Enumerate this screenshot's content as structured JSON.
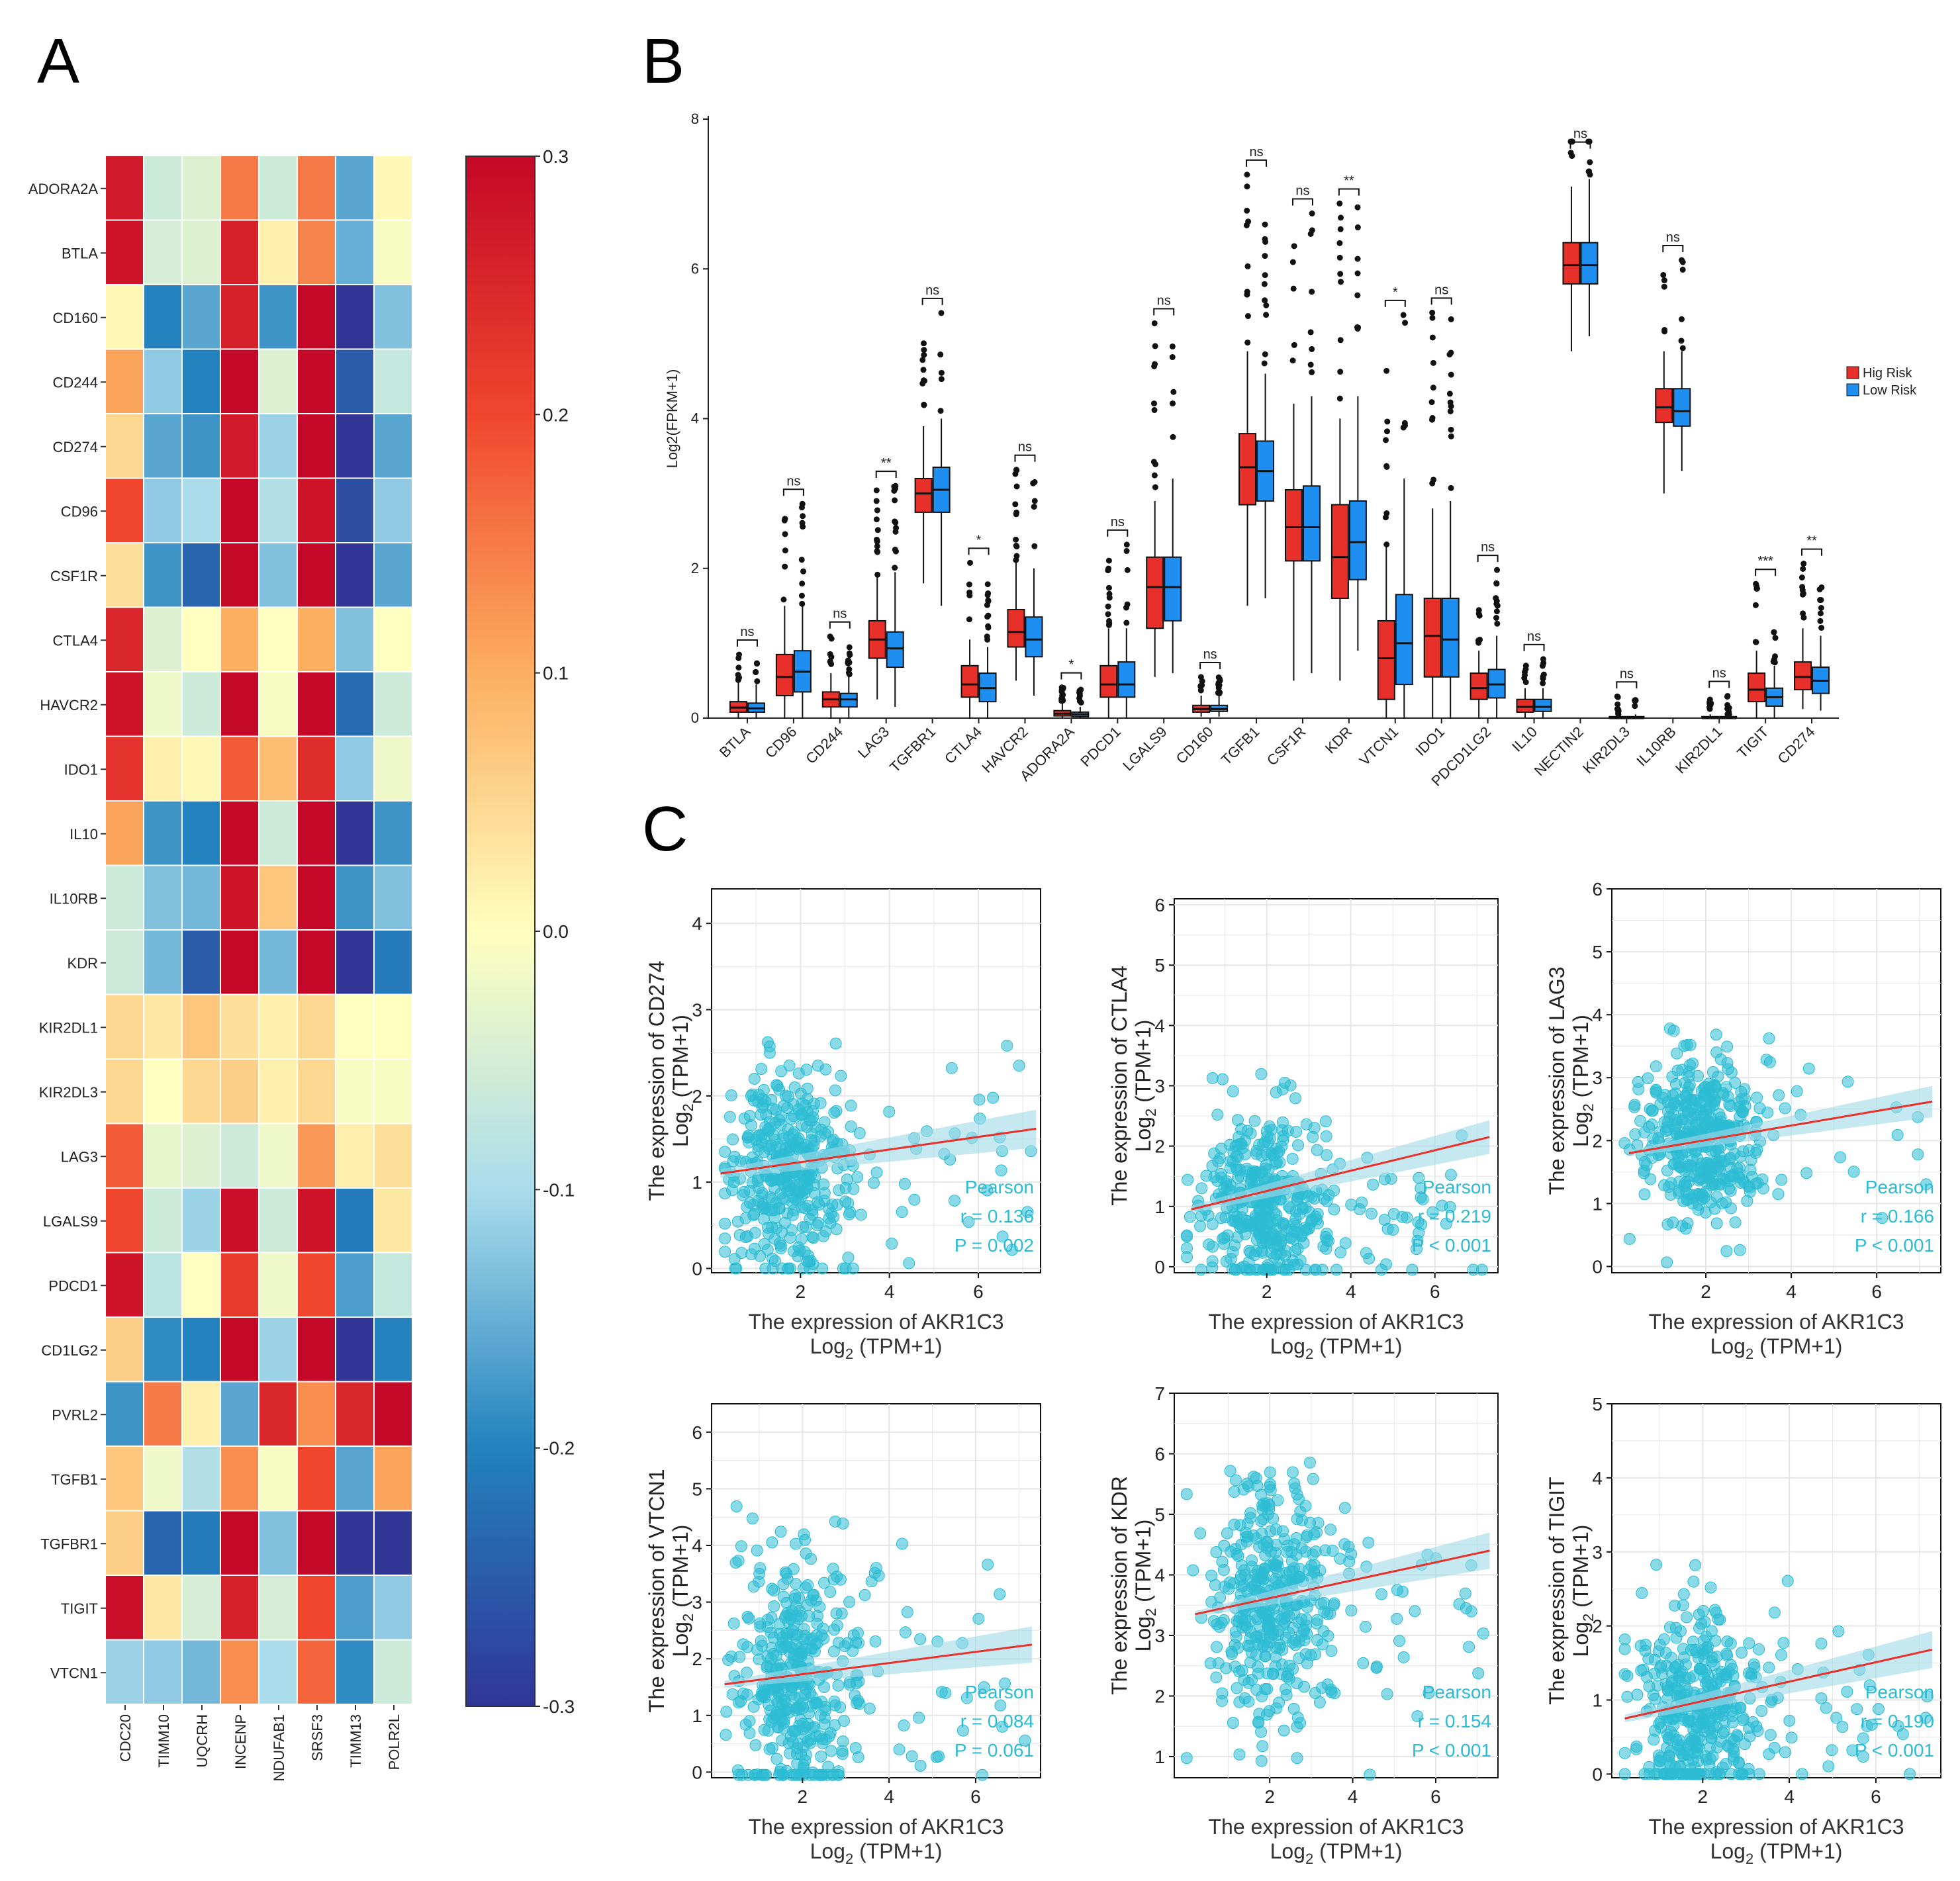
{
  "panel_labels": [
    "A",
    "B",
    "C"
  ],
  "chart_data": [
    {
      "type": "heatmap",
      "panel": "A",
      "rows": [
        "ADORA2A",
        "BTLA",
        "CD160",
        "CD244",
        "CD274",
        "CD96",
        "CSF1R",
        "CTLA4",
        "HAVCR2",
        "IDO1",
        "IL10",
        "IL10RB",
        "KDR",
        "KIR2DL1",
        "KIR2DL3",
        "LAG3",
        "LGALS9",
        "PDCD1",
        "CD1LG2",
        "PVRL2",
        "TGFB1",
        "TGFBR1",
        "TIGIT",
        "VTCN1"
      ],
      "columns": [
        "CDC20",
        "TIMM10",
        "UQCRH",
        "INCENP",
        "NDUFAB1",
        "SRSF3",
        "TIMM13",
        "POLR2L"
      ],
      "values": [
        [
          0.27,
          -0.06,
          -0.04,
          0.15,
          -0.06,
          0.15,
          -0.16,
          0.01
        ],
        [
          0.28,
          -0.05,
          -0.04,
          0.26,
          0.02,
          0.14,
          -0.15,
          -0.01
        ],
        [
          0.01,
          -0.2,
          -0.16,
          0.26,
          -0.18,
          0.3,
          -0.3,
          -0.13
        ],
        [
          0.11,
          -0.12,
          -0.2,
          0.3,
          -0.04,
          0.3,
          -0.25,
          -0.07
        ],
        [
          0.05,
          -0.16,
          -0.18,
          0.27,
          -0.11,
          0.3,
          -0.3,
          -0.16
        ],
        [
          0.2,
          -0.12,
          -0.1,
          0.3,
          -0.09,
          0.28,
          -0.27,
          -0.12
        ],
        [
          0.04,
          -0.18,
          -0.24,
          0.3,
          -0.13,
          0.3,
          -0.3,
          -0.16
        ],
        [
          0.25,
          -0.04,
          0.0,
          0.1,
          0.0,
          0.1,
          -0.13,
          0.0
        ],
        [
          0.28,
          -0.02,
          -0.06,
          0.3,
          -0.01,
          0.3,
          -0.23,
          -0.06
        ],
        [
          0.23,
          0.02,
          0.01,
          0.18,
          0.08,
          0.24,
          -0.12,
          -0.02
        ],
        [
          0.11,
          -0.18,
          -0.2,
          0.3,
          -0.06,
          0.3,
          -0.3,
          -0.18
        ],
        [
          -0.06,
          -0.13,
          -0.14,
          0.28,
          0.07,
          0.3,
          -0.18,
          -0.13
        ],
        [
          -0.06,
          -0.14,
          -0.25,
          0.3,
          -0.14,
          0.3,
          -0.3,
          -0.21
        ],
        [
          0.05,
          0.03,
          0.07,
          0.04,
          0.02,
          0.05,
          0.0,
          0.0
        ],
        [
          0.05,
          0.0,
          0.05,
          0.06,
          0.02,
          0.05,
          -0.01,
          -0.01
        ],
        [
          0.18,
          -0.03,
          -0.04,
          -0.06,
          -0.02,
          0.12,
          0.02,
          0.04
        ],
        [
          0.2,
          -0.06,
          -0.11,
          0.29,
          -0.06,
          0.28,
          -0.21,
          0.03
        ],
        [
          0.28,
          -0.08,
          0.0,
          0.22,
          -0.02,
          0.2,
          -0.17,
          -0.07
        ],
        [
          0.06,
          -0.19,
          -0.2,
          0.3,
          -0.11,
          0.3,
          -0.3,
          -0.2
        ],
        [
          -0.18,
          0.15,
          0.02,
          -0.16,
          0.25,
          0.13,
          0.25,
          0.3
        ],
        [
          0.07,
          -0.02,
          -0.09,
          0.13,
          -0.01,
          0.2,
          -0.16,
          0.11
        ],
        [
          0.06,
          -0.24,
          -0.21,
          0.3,
          -0.13,
          0.3,
          -0.3,
          -0.3
        ],
        [
          0.29,
          0.03,
          -0.05,
          0.26,
          -0.05,
          0.2,
          -0.17,
          -0.12
        ],
        [
          -0.11,
          -0.12,
          -0.14,
          0.13,
          -0.1,
          0.17,
          -0.19,
          -0.06
        ]
      ],
      "colorbar": {
        "min": -0.3,
        "max": 0.3,
        "ticks": [
          "0.3",
          "0.2",
          "0.1",
          "0.0",
          "-0.1",
          "-0.2",
          "-0.3"
        ]
      }
    },
    {
      "type": "bar",
      "subtype": "boxplot",
      "panel": "B",
      "ylabel": "Log2(FPKM+1)",
      "ylim": [
        0,
        8
      ],
      "yticks": [
        "0",
        "2",
        "4",
        "6",
        "8"
      ],
      "legend": {
        "position": "right",
        "entries": [
          "Hig Risk",
          "Low Risk"
        ]
      },
      "categories": [
        "BTLA",
        "CD96",
        "CD244",
        "LAG3",
        "TGFBR1",
        "CTLA4",
        "HAVCR2",
        "ADORA2A",
        "PDCD1",
        "LGALS9",
        "CD160",
        "TGFB1",
        "CSF1R",
        "KDR",
        "VTCN1",
        "IDO1",
        "PDCD1LG2",
        "IL10",
        "NECTIN2",
        "KIR2DL3",
        "IL10RB",
        "KIR2DL1",
        "TIGIT",
        "CD274"
      ],
      "significance": [
        "ns",
        "ns",
        "ns",
        "**",
        "ns",
        "*",
        "ns",
        "*",
        "ns",
        "ns",
        "ns",
        "ns",
        "ns",
        "**",
        "*",
        "ns",
        "ns",
        "ns",
        "ns",
        "ns",
        "ns",
        "ns",
        "***",
        "**"
      ],
      "series": [
        {
          "name": "Hig Risk",
          "q1": [
            0.08,
            0.3,
            0.15,
            0.8,
            2.75,
            0.28,
            0.95,
            0.03,
            0.28,
            1.2,
            0.08,
            2.85,
            2.1,
            1.6,
            0.25,
            0.55,
            0.25,
            0.08,
            5.8,
            0.0,
            3.95,
            0.0,
            0.22,
            0.38
          ],
          "median": [
            0.14,
            0.55,
            0.25,
            1.05,
            3.0,
            0.45,
            1.15,
            0.06,
            0.45,
            1.75,
            0.12,
            3.35,
            2.55,
            2.15,
            0.8,
            1.1,
            0.4,
            0.15,
            6.05,
            0.0,
            4.15,
            0.0,
            0.38,
            0.55
          ],
          "q3": [
            0.22,
            0.85,
            0.35,
            1.3,
            3.2,
            0.7,
            1.45,
            0.1,
            0.7,
            2.15,
            0.17,
            3.8,
            3.05,
            2.85,
            1.3,
            1.6,
            0.6,
            0.25,
            6.35,
            0.02,
            4.4,
            0.02,
            0.6,
            0.75
          ],
          "wlo": [
            0.0,
            0.0,
            0.0,
            0.25,
            1.8,
            0.0,
            0.5,
            0.0,
            0.0,
            0.55,
            0.02,
            1.5,
            0.5,
            0.5,
            0.0,
            0.0,
            0.0,
            0.0,
            4.9,
            0.0,
            3.0,
            0.0,
            0.0,
            0.12
          ],
          "whi": [
            0.5,
            1.5,
            0.6,
            1.9,
            3.9,
            1.05,
            2.1,
            0.2,
            1.2,
            2.9,
            0.3,
            4.9,
            4.2,
            4.0,
            2.3,
            2.8,
            0.9,
            0.4,
            7.1,
            0.05,
            4.9,
            0.05,
            0.9,
            1.2
          ]
        },
        {
          "name": "Low Risk",
          "q1": [
            0.08,
            0.35,
            0.15,
            0.68,
            2.75,
            0.22,
            0.82,
            0.02,
            0.28,
            1.3,
            0.09,
            2.9,
            2.1,
            1.85,
            0.45,
            0.55,
            0.27,
            0.09,
            5.8,
            0.0,
            3.9,
            0.0,
            0.16,
            0.33
          ],
          "median": [
            0.13,
            0.62,
            0.25,
            0.93,
            3.05,
            0.4,
            1.05,
            0.05,
            0.45,
            1.75,
            0.12,
            3.3,
            2.55,
            2.35,
            1.0,
            1.05,
            0.45,
            0.15,
            6.05,
            0.0,
            4.1,
            0.0,
            0.28,
            0.5
          ],
          "q3": [
            0.2,
            0.9,
            0.33,
            1.15,
            3.35,
            0.6,
            1.35,
            0.08,
            0.75,
            2.15,
            0.17,
            3.7,
            3.1,
            2.9,
            1.65,
            1.6,
            0.65,
            0.25,
            6.35,
            0.02,
            4.4,
            0.02,
            0.4,
            0.68
          ],
          "wlo": [
            0.0,
            0.0,
            0.0,
            0.15,
            1.5,
            0.0,
            0.3,
            0.0,
            0.0,
            0.6,
            0.02,
            1.6,
            0.6,
            0.9,
            0.0,
            0.0,
            0.0,
            0.0,
            5.1,
            0.0,
            3.3,
            0.0,
            0.0,
            0.1
          ],
          "whi": [
            0.45,
            1.5,
            0.55,
            1.95,
            4.0,
            0.95,
            2.0,
            0.15,
            1.2,
            3.2,
            0.3,
            4.6,
            4.3,
            4.3,
            3.2,
            2.9,
            1.1,
            0.4,
            7.2,
            0.05,
            4.9,
            0.05,
            0.7,
            1.1
          ]
        }
      ]
    },
    {
      "type": "scatter",
      "panel": "C",
      "title": "CD274",
      "xlabel": [
        "The expression of AKR1C3",
        "Log",
        "2",
        " (TPM+1)"
      ],
      "ylabel": [
        "The expression of CD274",
        "Log",
        "2",
        " (TPM+1)"
      ],
      "xlim": [
        0,
        7.4
      ],
      "ylim": [
        -0.05,
        4.4
      ],
      "xticks": [
        "2",
        "4",
        "6"
      ],
      "yticks": [
        "0",
        "1",
        "2",
        "3",
        "4"
      ],
      "fit": {
        "x": [
          0.2,
          7.3
        ],
        "y": [
          1.1,
          1.62
        ],
        "band": [
          0.05,
          0.22
        ]
      },
      "stats": [
        "Pearson",
        "r = 0.136",
        "P = 0.002"
      ]
    },
    {
      "type": "scatter",
      "panel": "C",
      "title": "CTLA4",
      "xlabel": [
        "The expression of AKR1C3",
        "Log",
        "2",
        " (TPM+1)"
      ],
      "ylabel": [
        "The expression of CTLA4",
        "Log",
        "2",
        " (TPM+1)"
      ],
      "xlim": [
        -0.2,
        7.5
      ],
      "ylim": [
        -0.1,
        6.1
      ],
      "xticks": [
        "2",
        "4",
        "6"
      ],
      "yticks": [
        "0",
        "1",
        "2",
        "3",
        "4",
        "5",
        "6"
      ],
      "fit": {
        "x": [
          0.2,
          7.3
        ],
        "y": [
          0.95,
          2.15
        ],
        "band": [
          0.06,
          0.28
        ]
      },
      "stats": [
        "Pearson",
        "r = 0.219",
        "P < 0.001"
      ]
    },
    {
      "type": "scatter",
      "panel": "C",
      "title": "LAG3",
      "xlabel": [
        "The expression of AKR1C3",
        "Log",
        "2",
        " (TPM+1)"
      ],
      "ylabel": [
        "The expression of LAG3",
        "Log",
        "2",
        " (TPM+1)"
      ],
      "xlim": [
        -0.2,
        7.5
      ],
      "ylim": [
        -0.1,
        6.0
      ],
      "xticks": [
        "2",
        "4",
        "6"
      ],
      "yticks": [
        "0",
        "1",
        "2",
        "3",
        "4",
        "5",
        "6"
      ],
      "fit": {
        "x": [
          0.2,
          7.3
        ],
        "y": [
          1.8,
          2.62
        ],
        "band": [
          0.05,
          0.25
        ]
      },
      "stats": [
        "Pearson",
        "r = 0.166",
        "P < 0.001"
      ]
    },
    {
      "type": "scatter",
      "panel": "C",
      "title": "VTCN1",
      "xlabel": [
        "The expression of AKR1C3",
        "Log",
        "2",
        " (TPM+1)"
      ],
      "ylabel": [
        "The expression of VTCN1",
        "Log",
        "2",
        " (TPM+1)"
      ],
      "xlim": [
        -0.1,
        7.5
      ],
      "ylim": [
        -0.1,
        6.5
      ],
      "xticks": [
        "2",
        "4",
        "6"
      ],
      "yticks": [
        "0",
        "1",
        "2",
        "3",
        "4",
        "5",
        "6"
      ],
      "fit": {
        "x": [
          0.2,
          7.3
        ],
        "y": [
          1.55,
          2.25
        ],
        "band": [
          0.06,
          0.32
        ]
      },
      "stats": [
        "Pearson",
        "r = 0.084",
        "P = 0.061"
      ]
    },
    {
      "type": "scatter",
      "panel": "C",
      "title": "KDR",
      "xlabel": [
        "The expression of AKR1C3",
        "Log",
        "2",
        " (TPM+1)"
      ],
      "ylabel": [
        "The expression of KDR",
        "Log",
        "2",
        " (TPM+1)"
      ],
      "xlim": [
        -0.3,
        7.5
      ],
      "ylim": [
        0.65,
        7.0
      ],
      "xticks": [
        "2",
        "4",
        "6"
      ],
      "yticks": [
        "1",
        "2",
        "3",
        "4",
        "5",
        "6",
        "7"
      ],
      "fit": {
        "x": [
          0.2,
          7.3
        ],
        "y": [
          3.35,
          4.4
        ],
        "band": [
          0.05,
          0.3
        ]
      },
      "stats": [
        "Pearson",
        "r = 0.154",
        "P < 0.001"
      ]
    },
    {
      "type": "scatter",
      "panel": "C",
      "title": "TIGIT",
      "xlabel": [
        "The expression of AKR1C3",
        "Log",
        "2",
        " (TPM+1)"
      ],
      "ylabel": [
        "The expression of TIGIT",
        "Log",
        "2",
        " (TPM+1)"
      ],
      "xlim": [
        -0.1,
        7.5
      ],
      "ylim": [
        -0.05,
        5.0
      ],
      "xticks": [
        "2",
        "4",
        "6"
      ],
      "yticks": [
        "0",
        "1",
        "2",
        "3",
        "4",
        "5"
      ],
      "fit": {
        "x": [
          0.2,
          7.3
        ],
        "y": [
          0.75,
          1.68
        ],
        "band": [
          0.05,
          0.25
        ]
      },
      "stats": [
        "Pearson",
        "r = 0.190",
        "P < 0.001"
      ]
    }
  ]
}
